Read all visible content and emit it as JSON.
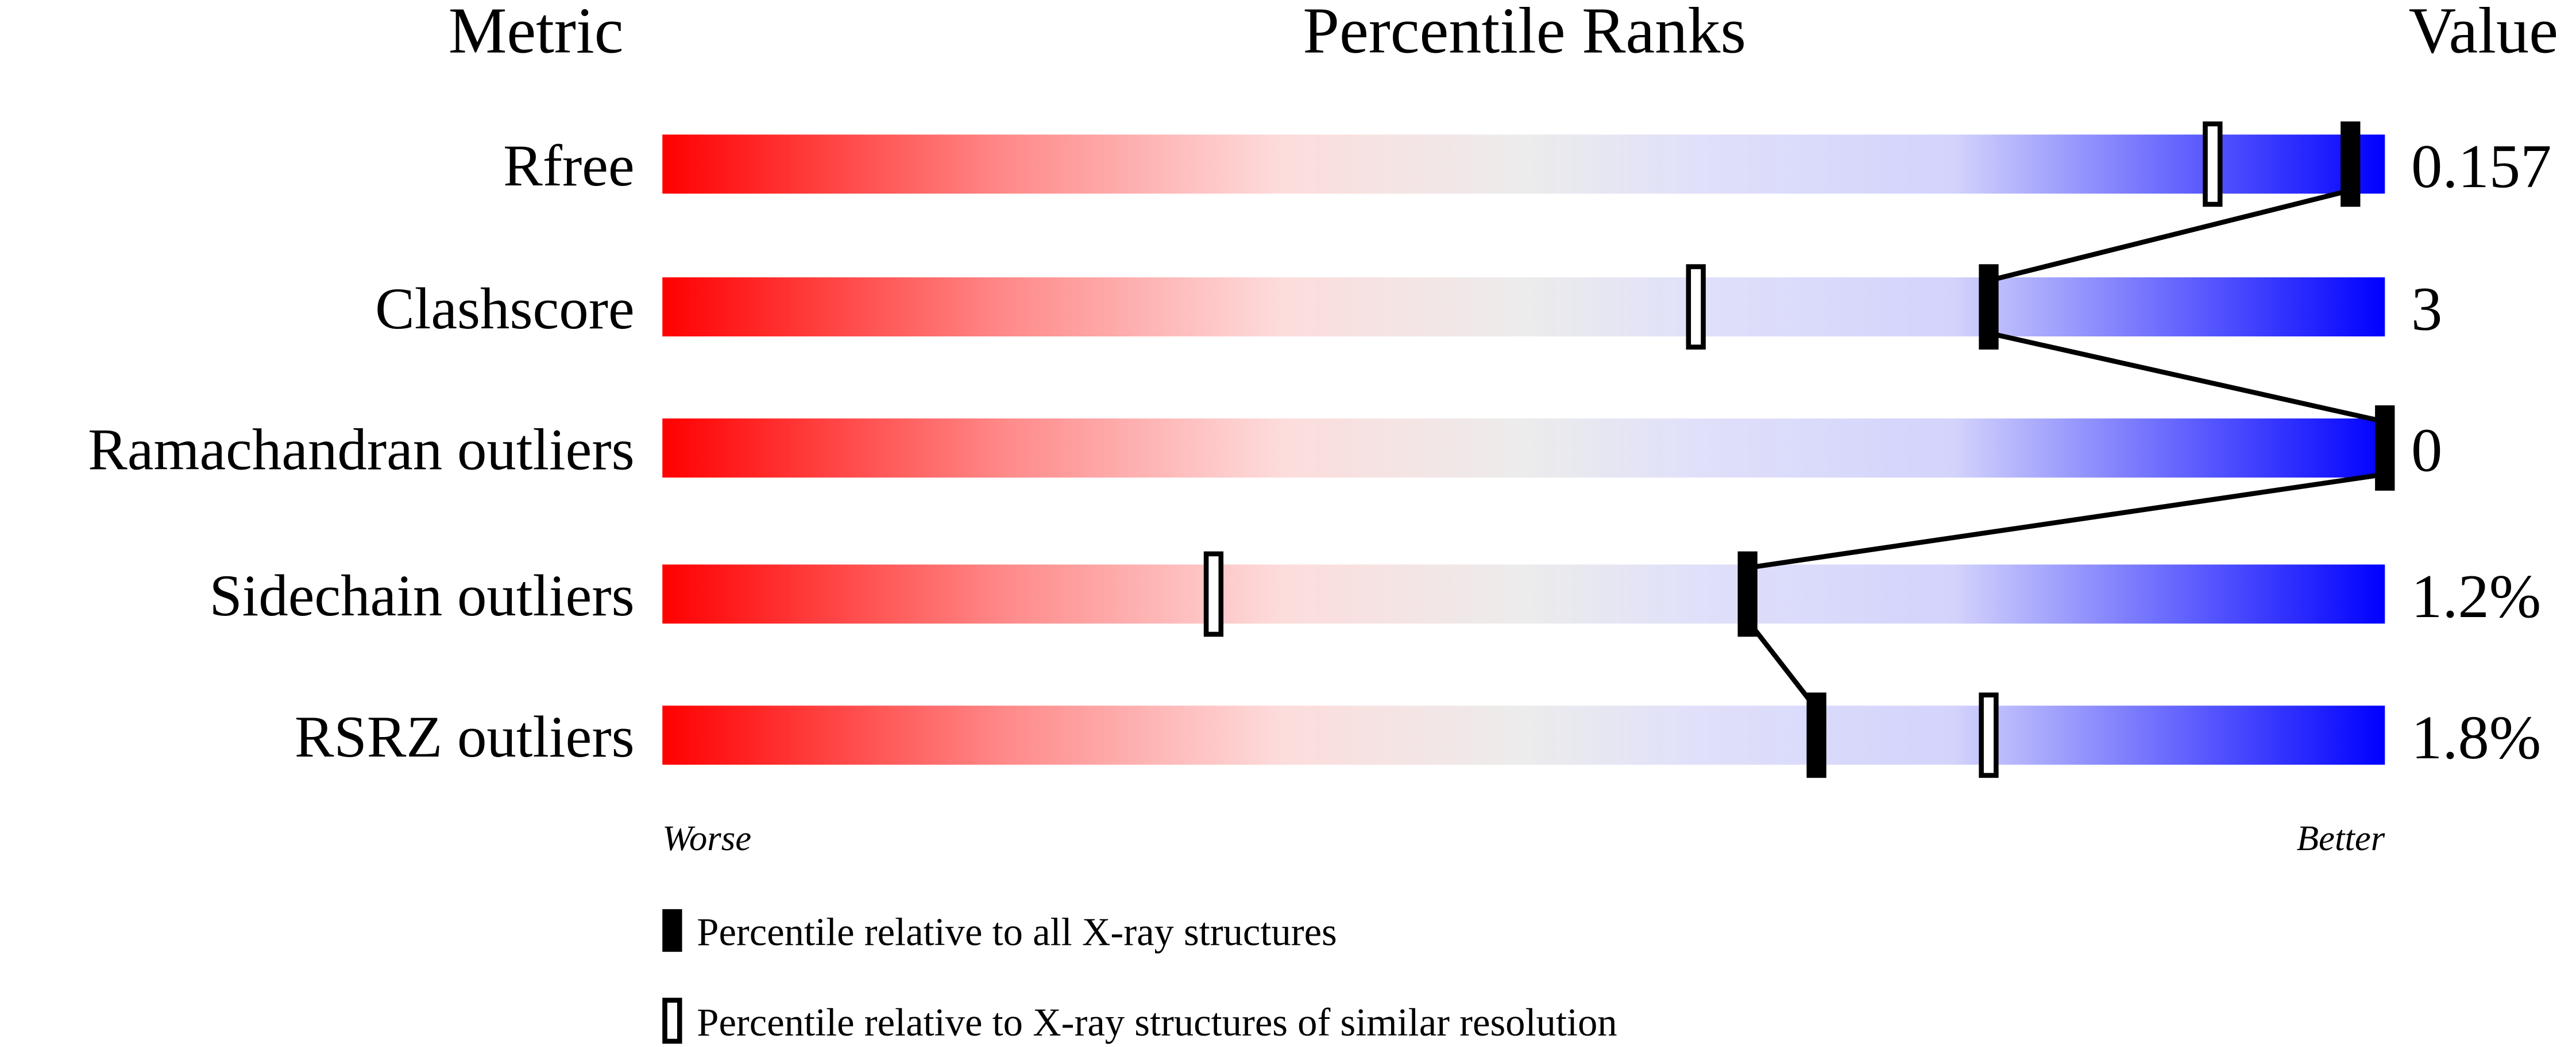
{
  "chart_data": {
    "type": "percentile-slider",
    "headers": {
      "metric": "Metric",
      "ranks": "Percentile Ranks",
      "value": "Value"
    },
    "axis": {
      "min": 0,
      "max": 100,
      "left_label": "Worse",
      "right_label": "Better"
    },
    "colors": {
      "worse": "#ff0000",
      "middle": "#eeeeee",
      "better": "#0000ff"
    },
    "metrics": [
      {
        "name": "Rfree",
        "value": "0.157",
        "percentile_all": 98,
        "percentile_similar": 90
      },
      {
        "name": "Clashscore",
        "value": "3",
        "percentile_all": 77,
        "percentile_similar": 60
      },
      {
        "name": "Ramachandran outliers",
        "value": "0",
        "percentile_all": 100,
        "percentile_similar": 100
      },
      {
        "name": "Sidechain outliers",
        "value": "1.2%",
        "percentile_all": 63,
        "percentile_similar": 32
      },
      {
        "name": "RSRZ outliers",
        "value": "1.8%",
        "percentile_all": 67,
        "percentile_similar": 77
      }
    ],
    "legend": [
      {
        "marker": "filled",
        "label": "Percentile relative to all X-ray structures"
      },
      {
        "marker": "hollow",
        "label": "Percentile relative to X-ray structures of similar resolution"
      }
    ]
  }
}
